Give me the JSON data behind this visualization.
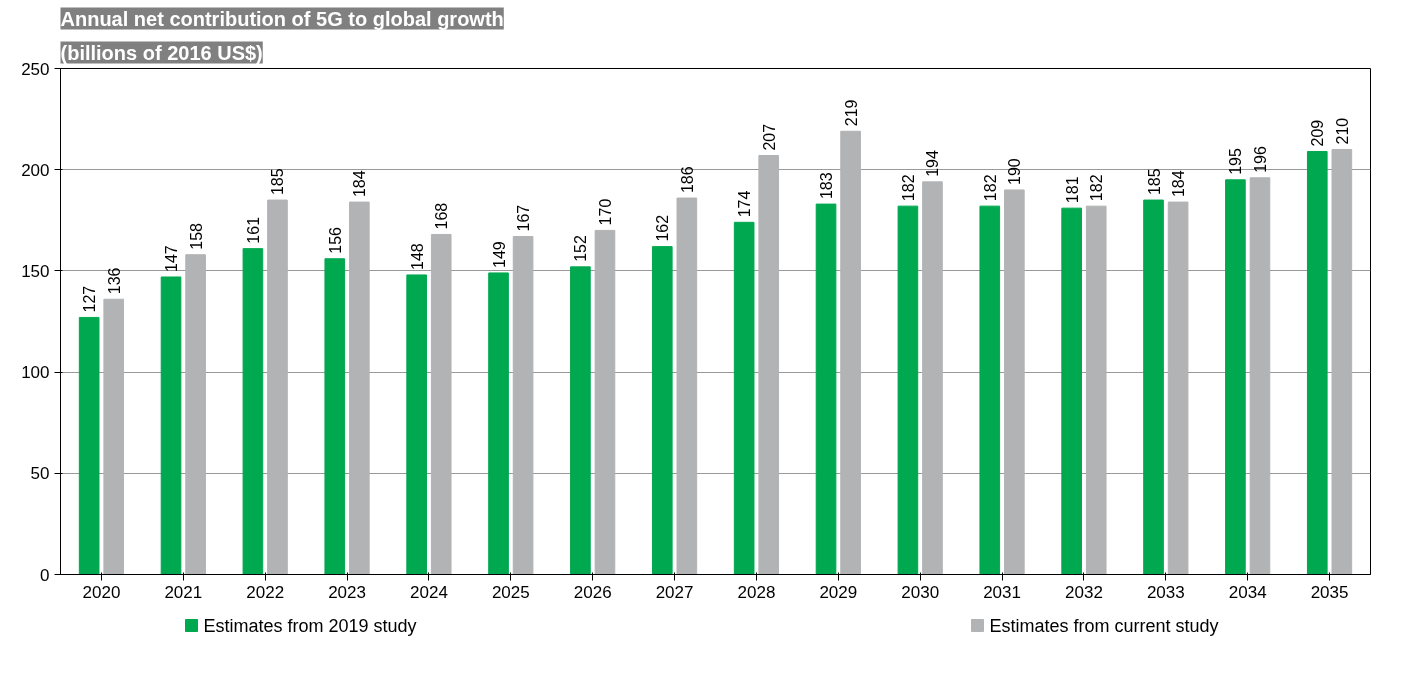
{
  "chart_data": {
    "type": "bar",
    "title": "Annual net contribution of 5G to global growth",
    "subtitle": "(billions of 2016 US$)",
    "categories": [
      "2020",
      "2021",
      "2022",
      "2023",
      "2024",
      "2025",
      "2026",
      "2027",
      "2028",
      "2029",
      "2030",
      "2031",
      "2032",
      "2033",
      "2034",
      "2035"
    ],
    "series": [
      {
        "name": "Estimates from 2019 study",
        "color": "#00a84f",
        "values": [
          127,
          147,
          161,
          156,
          148,
          149,
          152,
          162,
          174,
          183,
          182,
          182,
          181,
          185,
          195,
          209
        ]
      },
      {
        "name": "Estimates from current study",
        "color": "#b2b3b5",
        "values": [
          136,
          158,
          185,
          184,
          168,
          167,
          170,
          186,
          207,
          219,
          194,
          190,
          182,
          184,
          196,
          210
        ]
      }
    ],
    "ylim": [
      0,
      250
    ],
    "yticks": [
      0,
      50,
      100,
      150,
      200,
      250
    ],
    "grid": "y",
    "legend": "bottom",
    "data_labels": true
  }
}
